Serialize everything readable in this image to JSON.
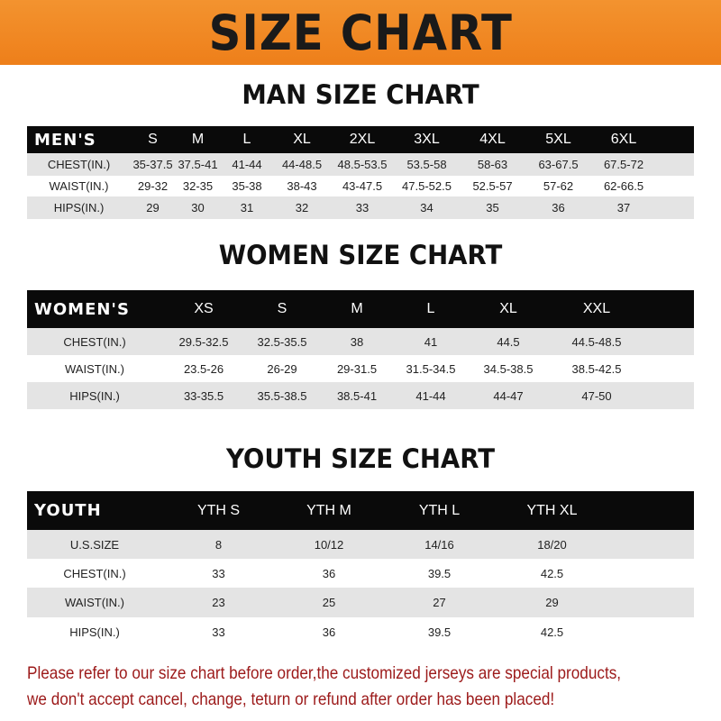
{
  "banner_title": "SIZE CHART",
  "sections": [
    {
      "title": "MAN SIZE CHART",
      "header_label": "MEN'S",
      "sizes": [
        "S",
        "M",
        "L",
        "XL",
        "2XL",
        "3XL",
        "4XL",
        "5XL",
        "6XL"
      ],
      "rows": [
        {
          "label": "CHEST(IN.)",
          "values": [
            "35-37.5",
            "37.5-41",
            "41-44",
            "44-48.5",
            "48.5-53.5",
            "53.5-58",
            "58-63",
            "63-67.5",
            "67.5-72"
          ]
        },
        {
          "label": "WAIST(IN.)",
          "values": [
            "29-32",
            "32-35",
            "35-38",
            "38-43",
            "43-47.5",
            "47.5-52.5",
            "52.5-57",
            "57-62",
            "62-66.5"
          ]
        },
        {
          "label": "HIPS(IN.)",
          "values": [
            "29",
            "30",
            "31",
            "32",
            "33",
            "34",
            "35",
            "36",
            "37"
          ]
        }
      ]
    },
    {
      "title": "WOMEN SIZE CHART",
      "header_label": "WOMEN'S",
      "sizes": [
        "XS",
        "S",
        "M",
        "L",
        "XL",
        "XXL"
      ],
      "rows": [
        {
          "label": "CHEST(IN.)",
          "values": [
            "29.5-32.5",
            "32.5-35.5",
            "38",
            "41",
            "44.5",
            "44.5-48.5"
          ]
        },
        {
          "label": "WAIST(IN.)",
          "values": [
            "23.5-26",
            "26-29",
            "29-31.5",
            "31.5-34.5",
            "34.5-38.5",
            "38.5-42.5"
          ]
        },
        {
          "label": "HIPS(IN.)",
          "values": [
            "33-35.5",
            "35.5-38.5",
            "38.5-41",
            "41-44",
            "44-47",
            "47-50"
          ]
        }
      ]
    },
    {
      "title": "YOUTH SIZE CHART",
      "header_label": "YOUTH",
      "sizes": [
        "YTH S",
        "YTH M",
        "YTH L",
        "YTH XL"
      ],
      "rows": [
        {
          "label": "U.S.SIZE",
          "values": [
            "8",
            "10/12",
            "14/16",
            "18/20"
          ]
        },
        {
          "label": "CHEST(IN.)",
          "values": [
            "33",
            "36",
            "39.5",
            "42.5"
          ]
        },
        {
          "label": "WAIST(IN.)",
          "values": [
            "23",
            "25",
            "27",
            "29"
          ]
        },
        {
          "label": "HIPS(IN.)",
          "values": [
            "33",
            "36",
            "39.5",
            "42.5"
          ]
        }
      ]
    }
  ],
  "notice": [
    "Please refer to our size chart before order,the customized jerseys are special products,",
    "we don't accept cancel, change, teturn or refund after order has been placed!"
  ],
  "colors": {
    "banner": "#ef8624",
    "header_row": "#0a0a0a",
    "stripe": "#e4e4e4",
    "notice": "#9c1a1a"
  }
}
